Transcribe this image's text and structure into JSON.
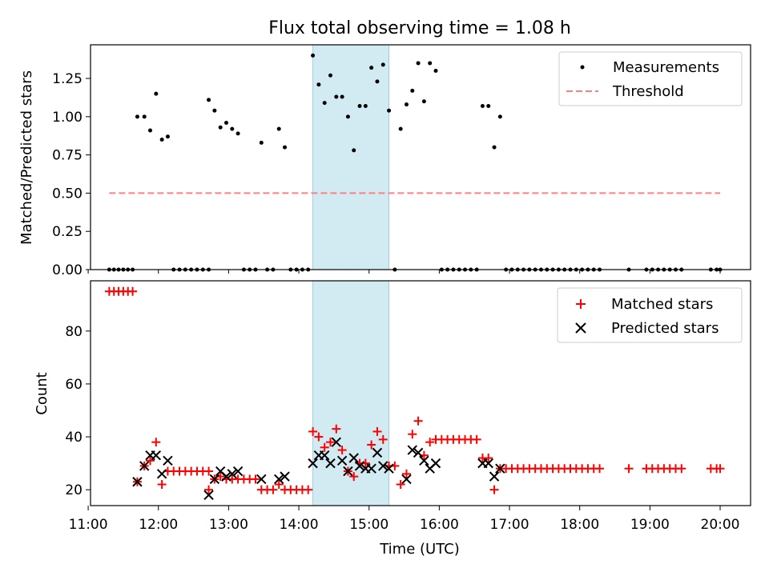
{
  "figure": {
    "title": "Flux total observing time = 1.08 h",
    "xlabel": "Time (UTC)"
  },
  "colors": {
    "measurement": "#000000",
    "threshold": "#ff7f7f",
    "matched": "#ff0000",
    "predicted": "#000000",
    "shade": "#add8e6"
  },
  "chart_data": [
    {
      "type": "scatter",
      "panel": "top",
      "ylabel": "Matched/Predicted stars",
      "xlim": [
        "11:02",
        "20:26"
      ],
      "ylim": [
        0,
        1.47
      ],
      "yticks": [
        0.0,
        0.25,
        0.5,
        0.75,
        1.0,
        1.25
      ],
      "ytick_labels": [
        "0.00",
        "0.25",
        "0.50",
        "0.75",
        "1.00",
        "1.25"
      ],
      "shaded_interval": [
        "14:12",
        "15:17"
      ],
      "legend": {
        "position": "top-right",
        "entries": [
          "Measurements",
          "Threshold"
        ]
      },
      "threshold": {
        "name": "Threshold",
        "y": 0.5,
        "x_range": [
          "11:18",
          "20:00"
        ]
      },
      "series": [
        {
          "name": "Measurements",
          "points": [
            [
              "11:18",
              0
            ],
            [
              "11:22",
              0
            ],
            [
              "11:26",
              0
            ],
            [
              "11:30",
              0
            ],
            [
              "11:34",
              0
            ],
            [
              "11:38",
              0
            ],
            [
              "11:42",
              1.0
            ],
            [
              "11:48",
              1.0
            ],
            [
              "11:53",
              0.91
            ],
            [
              "11:58",
              1.15
            ],
            [
              "12:03",
              0.85
            ],
            [
              "12:08",
              0.87
            ],
            [
              "12:13",
              0
            ],
            [
              "12:18",
              0
            ],
            [
              "12:23",
              0
            ],
            [
              "12:28",
              0
            ],
            [
              "12:33",
              0
            ],
            [
              "12:38",
              0
            ],
            [
              "12:43",
              0
            ],
            [
              "12:43",
              1.11
            ],
            [
              "12:48",
              1.04
            ],
            [
              "12:53",
              0.93
            ],
            [
              "12:58",
              0.96
            ],
            [
              "13:03",
              0.92
            ],
            [
              "13:08",
              0.89
            ],
            [
              "13:13",
              0
            ],
            [
              "13:18",
              0
            ],
            [
              "13:23",
              0
            ],
            [
              "13:28",
              0.83
            ],
            [
              "13:33",
              0
            ],
            [
              "13:38",
              0
            ],
            [
              "13:43",
              0.92
            ],
            [
              "13:48",
              0.8
            ],
            [
              "13:53",
              0
            ],
            [
              "13:58",
              0
            ],
            [
              "14:03",
              0
            ],
            [
              "14:08",
              0
            ],
            [
              "14:12",
              1.4
            ],
            [
              "14:17",
              1.21
            ],
            [
              "14:22",
              1.09
            ],
            [
              "14:27",
              1.27
            ],
            [
              "14:32",
              1.13
            ],
            [
              "14:37",
              1.13
            ],
            [
              "14:42",
              1.0
            ],
            [
              "14:47",
              0.78
            ],
            [
              "14:52",
              1.07
            ],
            [
              "14:57",
              1.07
            ],
            [
              "15:02",
              1.32
            ],
            [
              "15:07",
              1.23
            ],
            [
              "15:12",
              1.34
            ],
            [
              "15:17",
              1.04
            ],
            [
              "15:22",
              0
            ],
            [
              "15:27",
              0.92
            ],
            [
              "15:32",
              1.08
            ],
            [
              "15:37",
              1.17
            ],
            [
              "15:42",
              1.35
            ],
            [
              "15:47",
              1.1
            ],
            [
              "15:52",
              1.35
            ],
            [
              "15:57",
              1.3
            ],
            [
              "16:02",
              0
            ],
            [
              "16:07",
              0
            ],
            [
              "16:12",
              0
            ],
            [
              "16:17",
              0
            ],
            [
              "16:22",
              0
            ],
            [
              "16:27",
              0
            ],
            [
              "16:32",
              0
            ],
            [
              "16:37",
              1.07
            ],
            [
              "16:42",
              1.07
            ],
            [
              "16:47",
              0.8
            ],
            [
              "16:52",
              1.0
            ],
            [
              "16:57",
              0
            ],
            [
              "17:02",
              0
            ],
            [
              "17:07",
              0
            ],
            [
              "17:12",
              0
            ],
            [
              "17:17",
              0
            ],
            [
              "17:22",
              0
            ],
            [
              "17:27",
              0
            ],
            [
              "17:32",
              0
            ],
            [
              "17:37",
              0
            ],
            [
              "17:42",
              0
            ],
            [
              "17:47",
              0
            ],
            [
              "17:52",
              0
            ],
            [
              "17:57",
              0
            ],
            [
              "18:02",
              0
            ],
            [
              "18:07",
              0
            ],
            [
              "18:12",
              0
            ],
            [
              "18:17",
              0
            ],
            [
              "18:42",
              0
            ],
            [
              "18:57",
              0
            ],
            [
              "19:02",
              0
            ],
            [
              "19:07",
              0
            ],
            [
              "19:12",
              0
            ],
            [
              "19:17",
              0
            ],
            [
              "19:22",
              0
            ],
            [
              "19:27",
              0
            ],
            [
              "19:52",
              0
            ],
            [
              "19:57",
              0
            ],
            [
              "20:00",
              0
            ]
          ]
        }
      ]
    },
    {
      "type": "scatter",
      "panel": "bottom",
      "ylabel": "Count",
      "xlabel": "Time (UTC)",
      "xlim": [
        "11:02",
        "20:26"
      ],
      "ylim": [
        14,
        99
      ],
      "yticks": [
        20,
        40,
        60,
        80
      ],
      "ytick_labels": [
        "20",
        "40",
        "60",
        "80"
      ],
      "xticks": [
        "11:00",
        "12:00",
        "13:00",
        "14:00",
        "15:00",
        "16:00",
        "17:00",
        "18:00",
        "19:00",
        "20:00"
      ],
      "shaded_interval": [
        "14:12",
        "15:17"
      ],
      "legend": {
        "position": "top-right",
        "entries": [
          "Matched stars",
          "Predicted stars"
        ]
      },
      "series": [
        {
          "name": "Matched stars",
          "marker": "+",
          "points": [
            [
              "11:18",
              95
            ],
            [
              "11:22",
              95
            ],
            [
              "11:26",
              95
            ],
            [
              "11:30",
              95
            ],
            [
              "11:34",
              95
            ],
            [
              "11:38",
              95
            ],
            [
              "11:42",
              23
            ],
            [
              "11:48",
              29
            ],
            [
              "11:53",
              31
            ],
            [
              "11:58",
              38
            ],
            [
              "12:03",
              22
            ],
            [
              "12:08",
              27
            ],
            [
              "12:13",
              27
            ],
            [
              "12:18",
              27
            ],
            [
              "12:23",
              27
            ],
            [
              "12:28",
              27
            ],
            [
              "12:33",
              27
            ],
            [
              "12:38",
              27
            ],
            [
              "12:43",
              27
            ],
            [
              "12:43",
              20
            ],
            [
              "12:48",
              24
            ],
            [
              "12:53",
              25
            ],
            [
              "12:58",
              24
            ],
            [
              "13:03",
              24
            ],
            [
              "13:08",
              24
            ],
            [
              "13:13",
              24
            ],
            [
              "13:18",
              24
            ],
            [
              "13:23",
              24
            ],
            [
              "13:28",
              20
            ],
            [
              "13:33",
              20
            ],
            [
              "13:38",
              20
            ],
            [
              "13:43",
              22
            ],
            [
              "13:48",
              20
            ],
            [
              "13:53",
              20
            ],
            [
              "13:58",
              20
            ],
            [
              "14:03",
              20
            ],
            [
              "14:08",
              20
            ],
            [
              "14:12",
              42
            ],
            [
              "14:17",
              40
            ],
            [
              "14:22",
              36
            ],
            [
              "14:27",
              38
            ],
            [
              "14:32",
              43
            ],
            [
              "14:37",
              35
            ],
            [
              "14:42",
              27
            ],
            [
              "14:47",
              25
            ],
            [
              "14:52",
              30
            ],
            [
              "14:57",
              30
            ],
            [
              "15:02",
              37
            ],
            [
              "15:07",
              42
            ],
            [
              "15:12",
              39
            ],
            [
              "15:17",
              29
            ],
            [
              "15:22",
              29
            ],
            [
              "15:27",
              22
            ],
            [
              "15:32",
              26
            ],
            [
              "15:37",
              41
            ],
            [
              "15:42",
              46
            ],
            [
              "15:47",
              33
            ],
            [
              "15:52",
              38
            ],
            [
              "15:57",
              39
            ],
            [
              "16:02",
              39
            ],
            [
              "16:07",
              39
            ],
            [
              "16:12",
              39
            ],
            [
              "16:17",
              39
            ],
            [
              "16:22",
              39
            ],
            [
              "16:27",
              39
            ],
            [
              "16:32",
              39
            ],
            [
              "16:37",
              32
            ],
            [
              "16:42",
              32
            ],
            [
              "16:47",
              20
            ],
            [
              "16:52",
              28
            ],
            [
              "16:57",
              28
            ],
            [
              "17:02",
              28
            ],
            [
              "17:07",
              28
            ],
            [
              "17:12",
              28
            ],
            [
              "17:17",
              28
            ],
            [
              "17:22",
              28
            ],
            [
              "17:27",
              28
            ],
            [
              "17:32",
              28
            ],
            [
              "17:37",
              28
            ],
            [
              "17:42",
              28
            ],
            [
              "17:47",
              28
            ],
            [
              "17:52",
              28
            ],
            [
              "17:57",
              28
            ],
            [
              "18:02",
              28
            ],
            [
              "18:07",
              28
            ],
            [
              "18:12",
              28
            ],
            [
              "18:17",
              28
            ],
            [
              "18:42",
              28
            ],
            [
              "18:57",
              28
            ],
            [
              "19:02",
              28
            ],
            [
              "19:07",
              28
            ],
            [
              "19:12",
              28
            ],
            [
              "19:17",
              28
            ],
            [
              "19:22",
              28
            ],
            [
              "19:27",
              28
            ],
            [
              "19:52",
              28
            ],
            [
              "19:57",
              28
            ],
            [
              "20:00",
              28
            ]
          ]
        },
        {
          "name": "Predicted stars",
          "marker": "x",
          "points": [
            [
              "11:42",
              23
            ],
            [
              "11:48",
              29
            ],
            [
              "11:53",
              33
            ],
            [
              "11:58",
              33
            ],
            [
              "12:03",
              26
            ],
            [
              "12:08",
              31
            ],
            [
              "12:43",
              18
            ],
            [
              "12:48",
              24
            ],
            [
              "12:53",
              27
            ],
            [
              "12:58",
              25
            ],
            [
              "13:03",
              26
            ],
            [
              "13:08",
              27
            ],
            [
              "13:28",
              24
            ],
            [
              "13:43",
              24
            ],
            [
              "13:48",
              25
            ],
            [
              "14:12",
              30
            ],
            [
              "14:17",
              33
            ],
            [
              "14:22",
              33
            ],
            [
              "14:27",
              30
            ],
            [
              "14:32",
              38
            ],
            [
              "14:37",
              31
            ],
            [
              "14:42",
              27
            ],
            [
              "14:47",
              32
            ],
            [
              "14:52",
              29
            ],
            [
              "14:57",
              28
            ],
            [
              "15:02",
              28
            ],
            [
              "15:07",
              34
            ],
            [
              "15:12",
              29
            ],
            [
              "15:17",
              28
            ],
            [
              "15:32",
              24
            ],
            [
              "15:37",
              35
            ],
            [
              "15:42",
              34
            ],
            [
              "15:47",
              31
            ],
            [
              "15:52",
              28
            ],
            [
              "15:57",
              30
            ],
            [
              "16:37",
              30
            ],
            [
              "16:42",
              30
            ],
            [
              "16:47",
              25
            ],
            [
              "16:52",
              28
            ]
          ]
        }
      ]
    }
  ]
}
